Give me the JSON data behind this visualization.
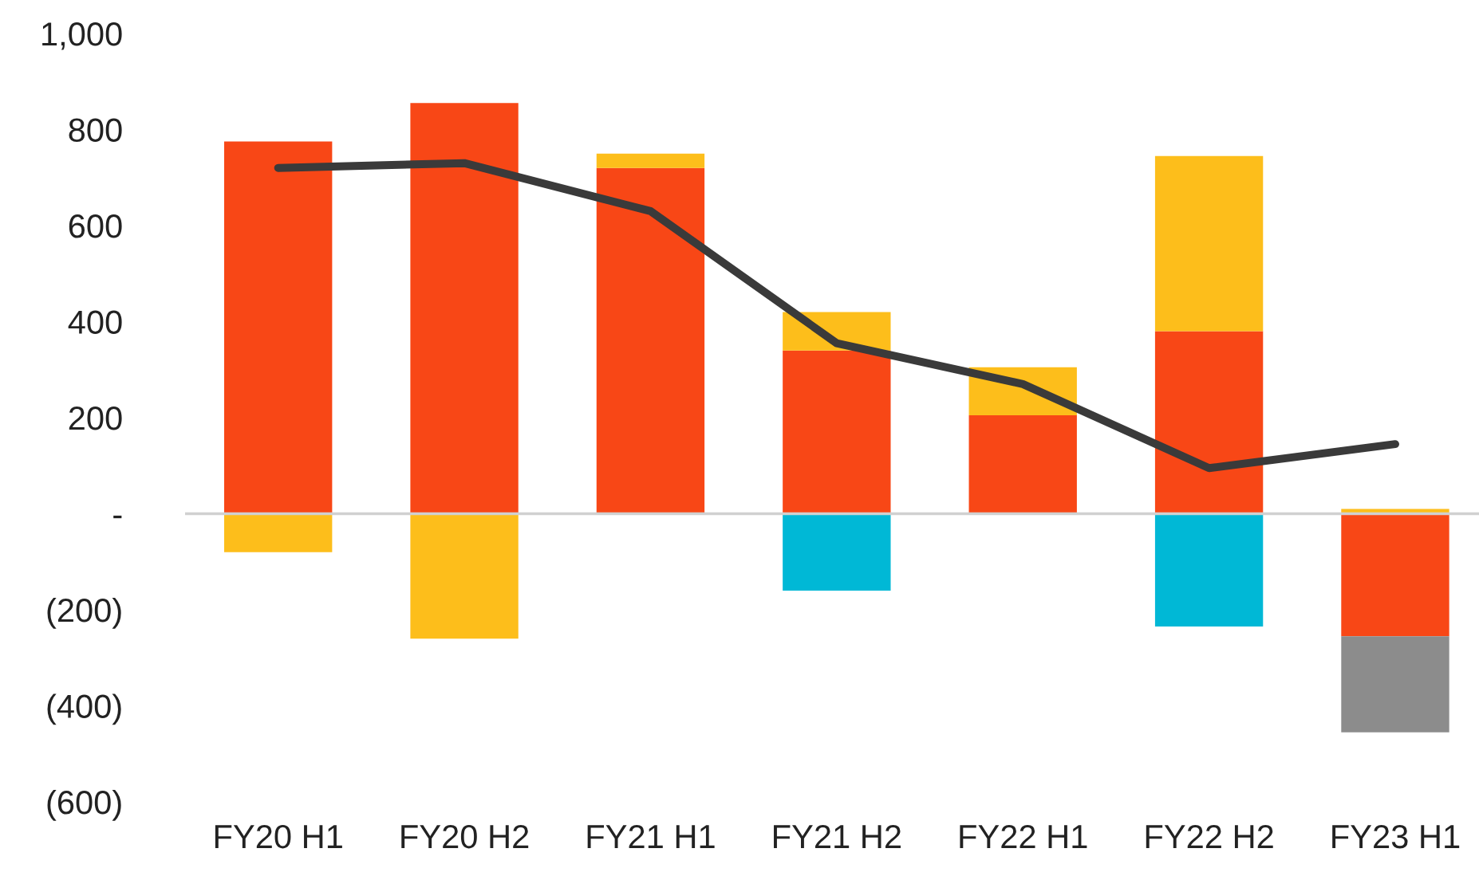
{
  "chart_data": {
    "type": "bar",
    "stacked": true,
    "categories": [
      "FY20 H1",
      "FY20 H2",
      "FY21 H1",
      "FY21 H2",
      "FY22 H1",
      "FY22 H2",
      "FY23 H1"
    ],
    "series": [
      {
        "color": "#f84716",
        "values": [
          775,
          855,
          720,
          340,
          205,
          380,
          -255
        ]
      },
      {
        "color": "#fdbe1b",
        "values": [
          -80,
          -260,
          30,
          80,
          100,
          365,
          10
        ]
      },
      {
        "color": "#00b8d6",
        "values": [
          null,
          null,
          null,
          -160,
          null,
          -235,
          null
        ]
      },
      {
        "color": "#8c8c8c",
        "values": [
          null,
          null,
          null,
          null,
          null,
          null,
          -200
        ]
      },
      {
        "type": "line",
        "color": "#3a3a3a",
        "values": [
          720,
          730,
          630,
          355,
          270,
          95,
          145
        ]
      }
    ],
    "ylim": [
      -600,
      1000
    ],
    "yticks": [
      {
        "value": 1000,
        "label": "1,000"
      },
      800,
      600,
      400,
      200,
      {
        "value": 0,
        "label": "-"
      },
      {
        "value": -200,
        "label": "(200)"
      },
      {
        "value": -400,
        "label": "(400)"
      },
      {
        "value": -600,
        "label": "(600)"
      }
    ],
    "ref_lines": [
      {
        "axis": "y",
        "value": 0,
        "color": "#d0d0d0"
      }
    ],
    "grid": false,
    "legend": false
  }
}
